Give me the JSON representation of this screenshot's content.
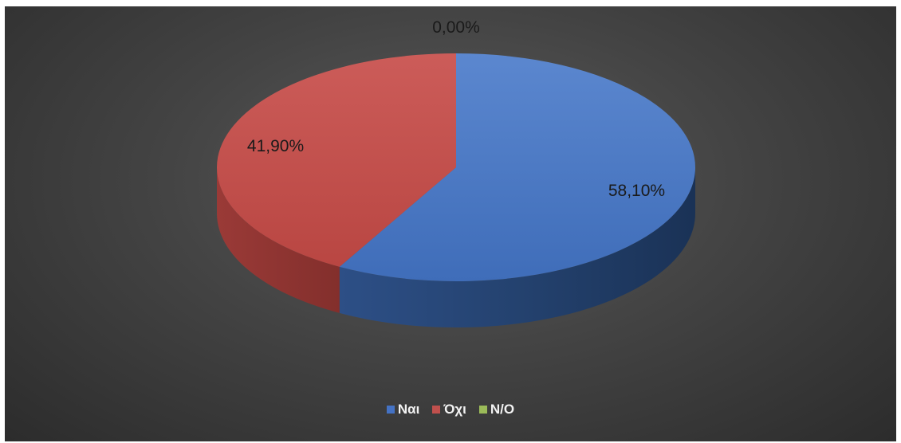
{
  "chart_data": {
    "type": "pie",
    "style": "3d",
    "categories": [
      "Ναι",
      "Όχι",
      "N/O"
    ],
    "values": [
      58.1,
      41.9,
      0.0
    ],
    "data_labels": [
      "58,10%",
      "41,90%",
      "0,00%"
    ],
    "colors": [
      "#4472c4",
      "#c0504d",
      "#9bbb59"
    ],
    "legend_position": "bottom",
    "title": ""
  }
}
